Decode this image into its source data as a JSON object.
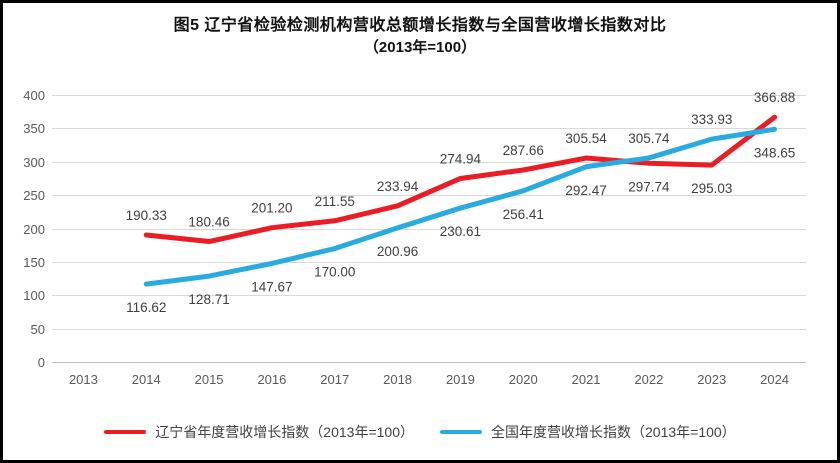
{
  "figure": {
    "title_line1": "图5  辽宁省检验检测机构营收总额增长指数与全国营收增长指数对比",
    "title_line2": "（2013年=100）"
  },
  "colors": {
    "liaoning": "#EC1C24",
    "national": "#29ABE2",
    "gridline": "#D9D9D9",
    "axis_line": "#BFBFBF",
    "axis_text": "#595959",
    "label_text": "#3F3F3F"
  },
  "chart_data": {
    "type": "line",
    "title": "图5 辽宁省检验检测机构营收总额增长指数与全国营收增长指数对比（2013年=100）",
    "x": [
      2013,
      2014,
      2015,
      2016,
      2017,
      2018,
      2019,
      2020,
      2021,
      2022,
      2023,
      2024
    ],
    "series": [
      {
        "name": "辽宁省年度营收增长指数（2013年=100）",
        "color_key": "liaoning",
        "values": [
          null,
          190.33,
          180.46,
          201.2,
          211.55,
          233.94,
          274.94,
          287.66,
          305.54,
          297.74,
          295.03,
          366.88
        ]
      },
      {
        "name": "全国年度营收增长指数（2013年=100）",
        "color_key": "national",
        "values": [
          null,
          116.62,
          128.71,
          147.67,
          170.0,
          200.96,
          230.61,
          256.41,
          292.47,
          305.74,
          333.93,
          348.65
        ]
      }
    ],
    "ylim": [
      0,
      400
    ],
    "ytick_step": 50,
    "yticks": [
      0,
      50,
      100,
      150,
      200,
      250,
      300,
      350,
      400
    ],
    "grid": true,
    "data_labels": true,
    "data_label_decimals": 2,
    "legend_position": "bottom"
  }
}
